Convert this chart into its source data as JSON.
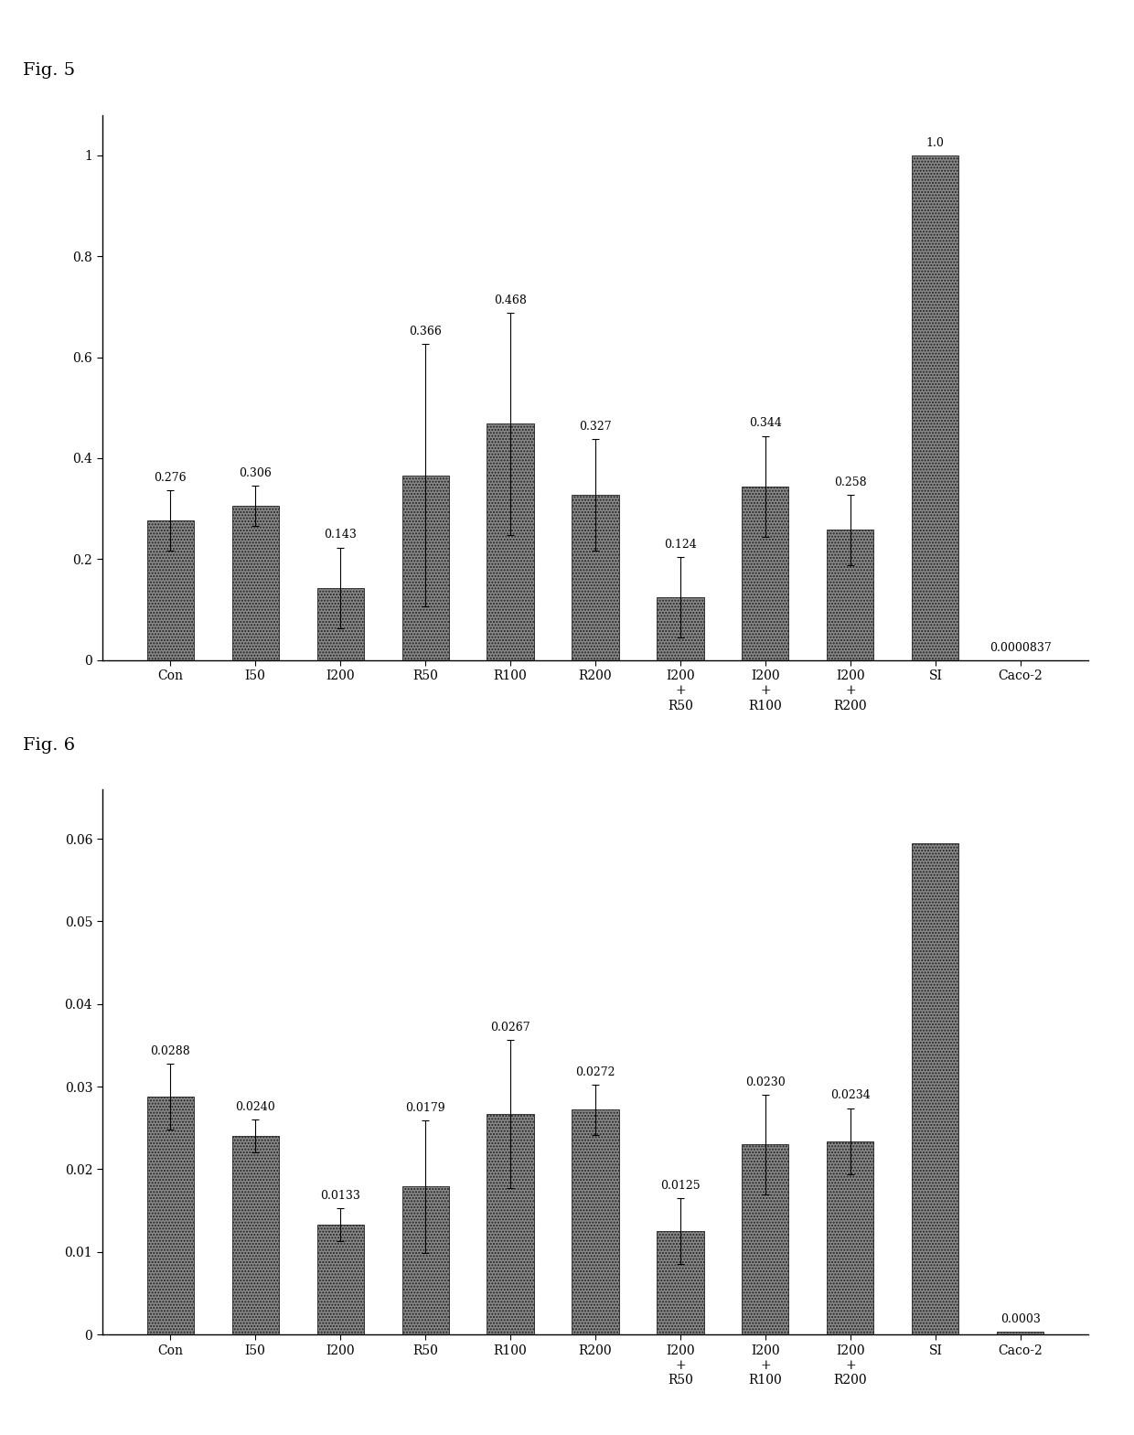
{
  "fig5": {
    "title": "Fig. 5",
    "categories": [
      "Con",
      "I50",
      "I200",
      "R50",
      "R100",
      "R200",
      "I200\n+\nR50",
      "I200\n+\nR100",
      "I200\n+\nR200",
      "SI",
      "Caco-2"
    ],
    "values": [
      0.276,
      0.306,
      0.143,
      0.366,
      0.468,
      0.327,
      0.124,
      0.344,
      0.258,
      1.0,
      8.37e-05
    ],
    "errors": [
      0.06,
      0.04,
      0.08,
      0.26,
      0.22,
      0.11,
      0.08,
      0.1,
      0.07,
      0.0,
      0.0
    ],
    "labels": [
      "0.276",
      "0.306",
      "0.143",
      "0.366",
      "0.468",
      "0.327",
      "0.124",
      "0.344",
      "0.258",
      "1.0",
      "0.0000837"
    ],
    "ylim": [
      0,
      1.08
    ],
    "yticks": [
      0,
      0.2,
      0.4,
      0.6,
      0.8,
      1
    ],
    "ytick_labels": [
      "0",
      "0.2",
      "0.4",
      "0.6",
      "0.8",
      "1"
    ],
    "bar_color": "#888888",
    "bar_edgecolor": "#222222",
    "hatch": ".....",
    "background": "#ffffff"
  },
  "fig6": {
    "title": "Fig. 6",
    "categories": [
      "Con",
      "I50",
      "I200",
      "R50",
      "R100",
      "R200",
      "I200\n+\nR50",
      "I200\n+\nR100",
      "I200\n+\nR200",
      "SI",
      "Caco-2"
    ],
    "values": [
      0.0288,
      0.024,
      0.0133,
      0.0179,
      0.0267,
      0.0272,
      0.0125,
      0.023,
      0.0234,
      0.0595,
      0.0003
    ],
    "errors": [
      0.004,
      0.002,
      0.002,
      0.008,
      0.009,
      0.003,
      0.004,
      0.006,
      0.004,
      0.0,
      0.0
    ],
    "labels": [
      "0.0288",
      "0.0240",
      "0.0133",
      "0.0179",
      "0.0267",
      "0.0272",
      "0.0125",
      "0.0230",
      "0.0234",
      "",
      "0.0003"
    ],
    "ylim": [
      0,
      0.066
    ],
    "yticks": [
      0,
      0.01,
      0.02,
      0.03,
      0.04,
      0.05,
      0.06
    ],
    "ytick_labels": [
      "0",
      "0.01",
      "0.02",
      "0.03",
      "0.04",
      "0.05",
      "0.06"
    ],
    "bar_color": "#888888",
    "bar_edgecolor": "#222222",
    "hatch": ".....",
    "background": "#ffffff"
  },
  "fig_label_fontsize": 14,
  "tick_fontsize": 10,
  "label_fontsize": 9,
  "bar_width": 0.55
}
